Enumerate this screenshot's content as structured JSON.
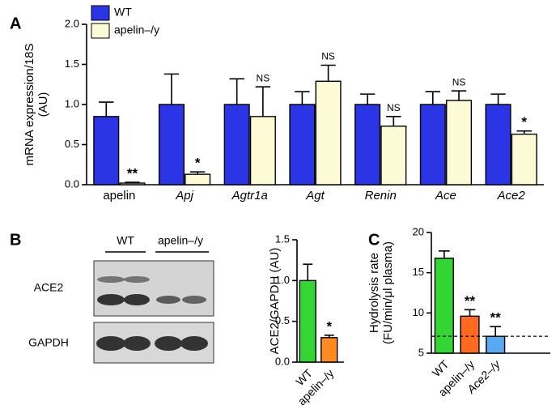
{
  "chart_data": [
    {
      "type": "bar",
      "panel": "A",
      "y_label": [
        "mRNA expression/18S",
        "(AU)"
      ],
      "categories": [
        "apelin",
        "Apj",
        "Agtr1a",
        "Agt",
        "Renin",
        "Ace",
        "Ace2"
      ],
      "series": [
        {
          "name": "WT",
          "color": "#2b35e6",
          "values": [
            0.85,
            1.0,
            1.0,
            1.0,
            1.0,
            1.0,
            1.0
          ],
          "errors": [
            0.18,
            0.38,
            0.32,
            0.16,
            0.13,
            0.16,
            0.13
          ]
        },
        {
          "name": "apelin–/y",
          "color": "#fdfbd6",
          "values": [
            0.02,
            0.13,
            0.85,
            1.29,
            0.73,
            1.05,
            0.63
          ],
          "errors": [
            0.01,
            0.03,
            0.37,
            0.2,
            0.12,
            0.12,
            0.04
          ],
          "annotations": [
            "**",
            "*",
            "NS",
            "NS",
            "NS",
            "NS",
            "*"
          ]
        }
      ],
      "ylim": [
        0,
        2
      ],
      "yticks": [
        {
          "value": 0,
          "label": "0.0"
        },
        0.5,
        {
          "value": 1,
          "label": "1.0"
        },
        1.5,
        {
          "value": 2,
          "label": "2.0"
        }
      ],
      "legend": "upper left"
    },
    {
      "type": "bar",
      "y_label": [
        "ACE2/GAPDH (AU)"
      ],
      "categories": [
        "WT",
        "apelin–/y"
      ],
      "values": [
        1.0,
        0.3
      ],
      "errors": [
        0.2,
        0.03
      ],
      "colors": [
        "#33d633",
        "#ff8a1f"
      ],
      "annotations": [
        null,
        "*"
      ],
      "ylim": [
        0,
        1.5
      ],
      "yticks": [
        {
          "value": 0,
          "label": "0.0"
        },
        0.5,
        {
          "value": 1,
          "label": "1.0"
        },
        1.5
      ]
    },
    {
      "type": "bar",
      "panel": "C",
      "y_label": [
        "Hydrolysis rate",
        "(FU/min/μl plasma)"
      ],
      "categories": [
        "WT",
        "apelin–/y",
        "Ace2–/y"
      ],
      "values": [
        16.8,
        9.6,
        7.1
      ],
      "errors": [
        0.9,
        0.8,
        1.2
      ],
      "colors": [
        "#33d633",
        "#ff6a1f",
        "#5aa8f0"
      ],
      "annotations": [
        null,
        "**",
        "**"
      ],
      "reference_line": 7.1,
      "ylim": [
        5,
        20
      ],
      "yticks": [
        5,
        10,
        15,
        20
      ]
    }
  ],
  "blot": {
    "panel": "B",
    "groups": [
      "WT",
      "apelin–/y"
    ],
    "rows": [
      "ACE2",
      "GAPDH"
    ]
  }
}
